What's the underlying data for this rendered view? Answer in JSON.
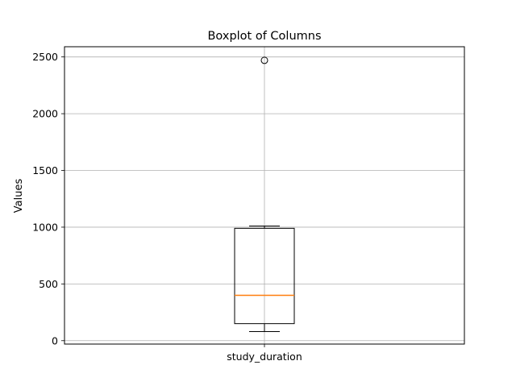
{
  "chart_data": {
    "type": "boxplot",
    "title": "Boxplot of Columns",
    "xlabel": "",
    "ylabel": "Values",
    "categories": [
      "study_duration"
    ],
    "boxes": [
      {
        "name": "study_duration",
        "whisker_low": 80,
        "q1": 150,
        "median": 400,
        "q3": 990,
        "whisker_high": 1010,
        "outliers": [
          2470
        ]
      }
    ],
    "ylim": [
      -30,
      2590
    ],
    "yticks": [
      0,
      500,
      1000,
      1500,
      2000,
      2500
    ],
    "grid": true,
    "colors": {
      "box": "#000000",
      "median": "#ff7f0e",
      "grid": "#b0b0b0"
    }
  }
}
